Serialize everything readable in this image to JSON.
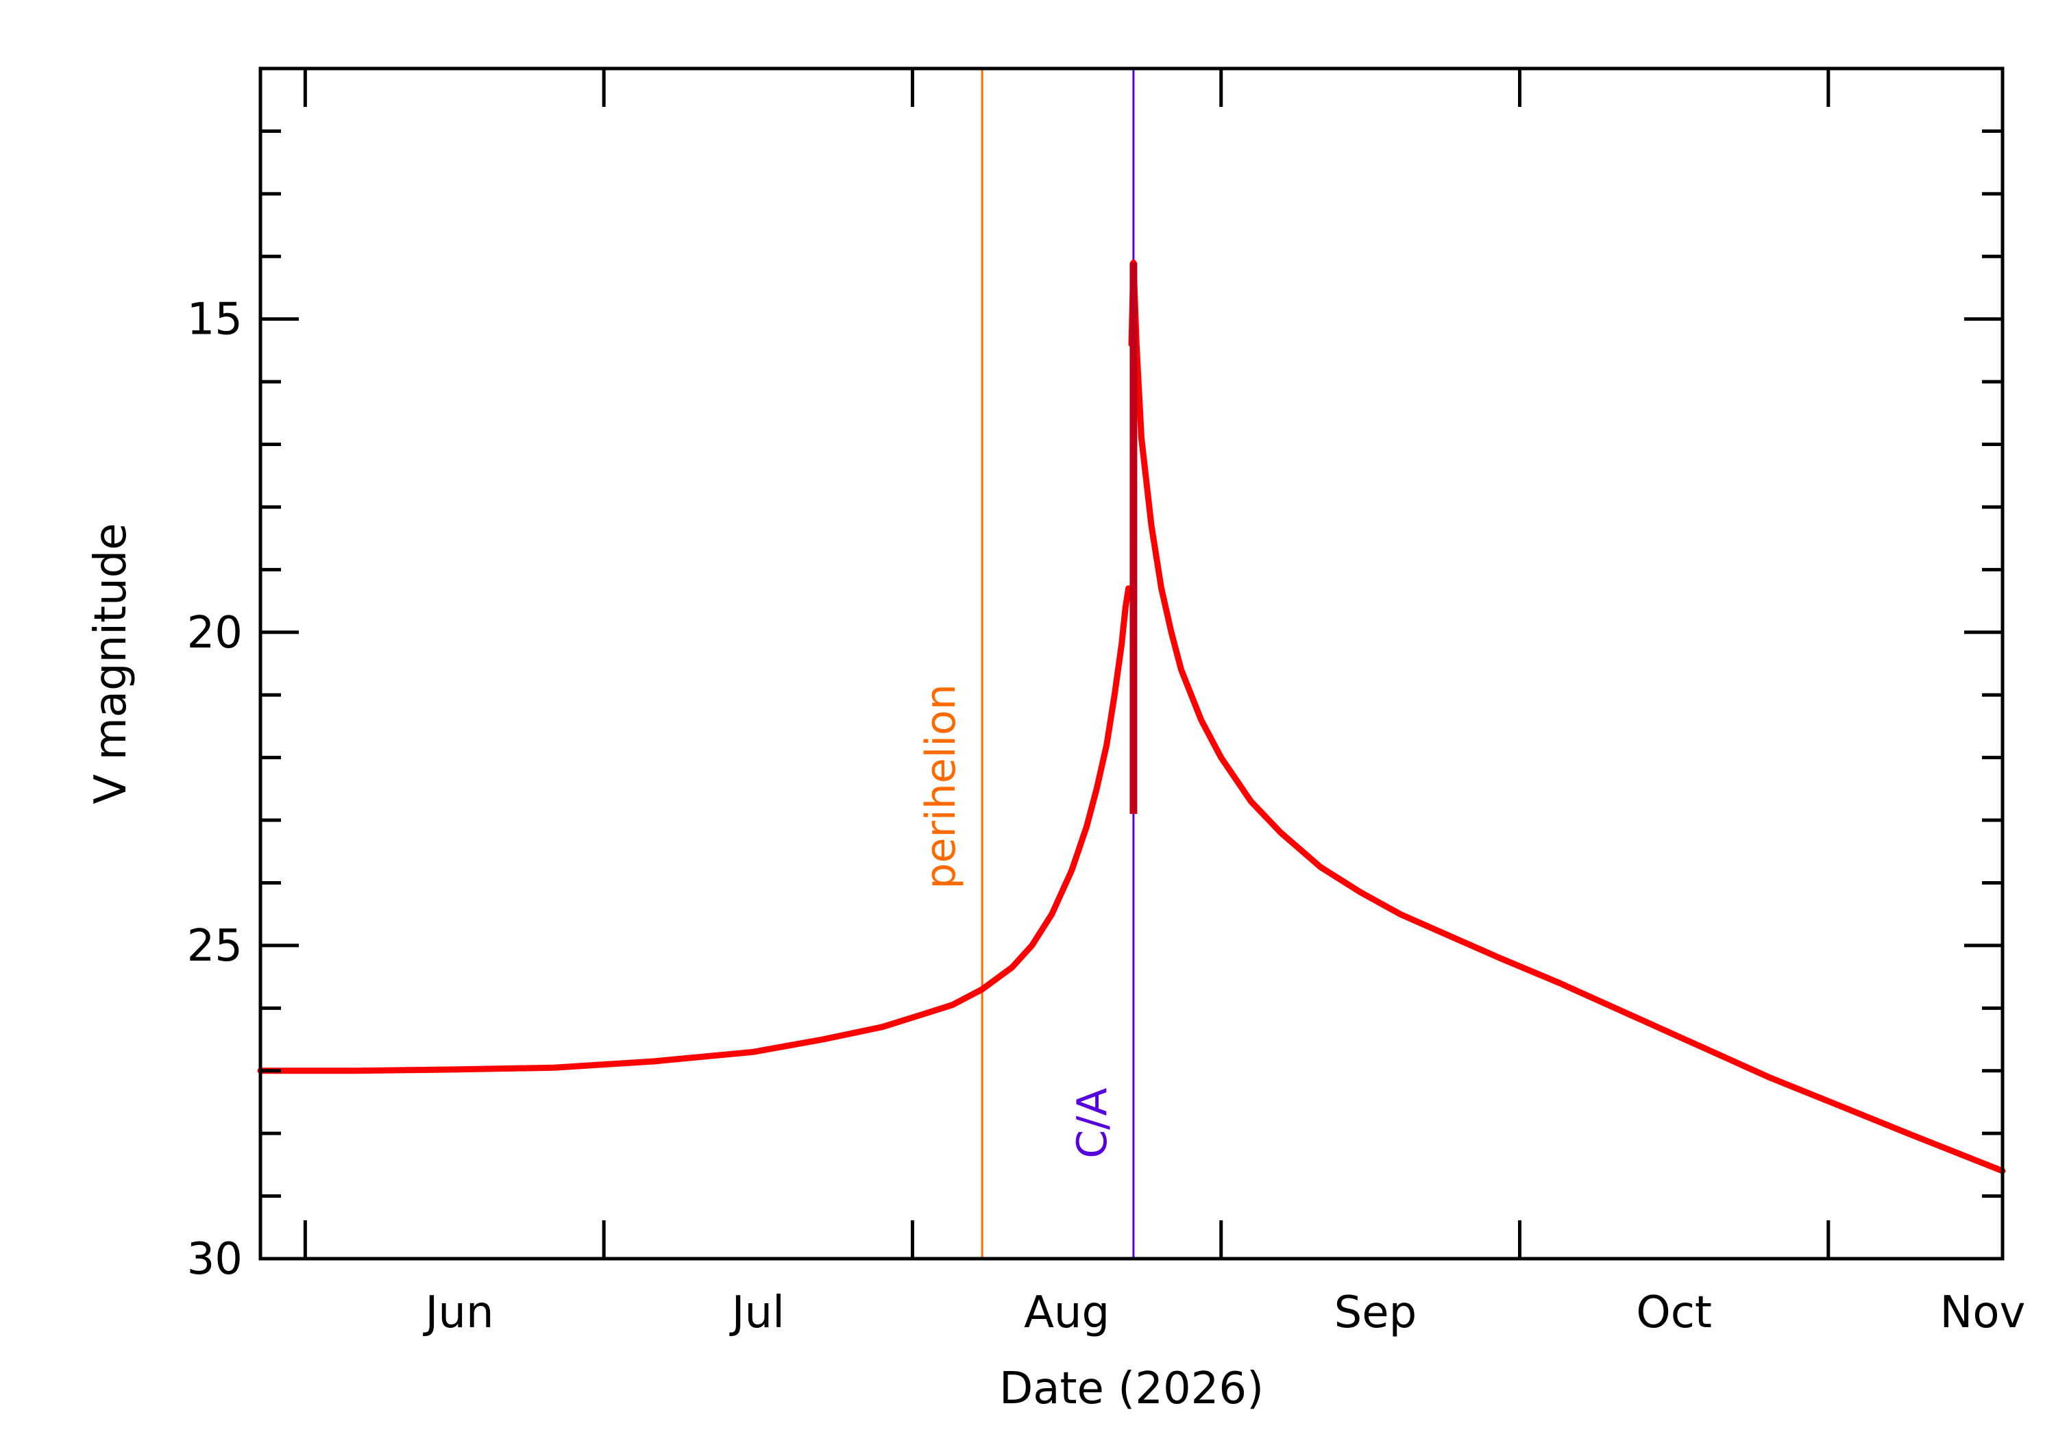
{
  "chart_data": {
    "type": "line",
    "title": "",
    "xlabel": "Date (2026)",
    "ylabel": "V magnitude",
    "x_ticks": [
      {
        "label": "Jun",
        "x": 1
      },
      {
        "label": "Jul",
        "x": 31
      },
      {
        "label": "Aug",
        "x": 62
      },
      {
        "label": "Sep",
        "x": 93
      },
      {
        "label": "Oct",
        "x": 123
      },
      {
        "label": "Nov",
        "x": 154
      }
    ],
    "xlim": [
      -4.5,
      170.5
    ],
    "ylim": [
      30,
      11
    ],
    "y_inverted": true,
    "y_ticks": [
      15,
      20,
      25,
      30
    ],
    "y_minor_step": 1,
    "x_minor_days": [
      16,
      46,
      77,
      108,
      138,
      169
    ],
    "grid": false,
    "legend": "none",
    "markers": [
      {
        "label": "perihelion",
        "x": 68.0,
        "color": "#ff6a00"
      },
      {
        "label": "C/A",
        "x": 83.2,
        "color": "#5500dd"
      }
    ],
    "series": [
      {
        "color": "#ff0000",
        "x": [
          -4.5,
          5,
          15,
          25,
          35,
          45,
          52,
          58,
          62,
          65,
          68,
          71,
          73,
          75,
          77,
          78.5,
          79.5,
          80.5,
          81.3,
          82.0,
          82.4,
          82.7
        ],
        "y": [
          27.0,
          27.0,
          26.98,
          26.95,
          26.85,
          26.7,
          26.5,
          26.3,
          26.1,
          25.95,
          25.7,
          25.35,
          25.0,
          24.5,
          23.8,
          23.1,
          22.5,
          21.8,
          21.0,
          20.2,
          19.6,
          19.3
        ]
      },
      {
        "color": "#ff0000",
        "x": [
          83.0,
          83.2,
          83.5,
          84,
          85,
          86,
          87,
          88,
          90,
          92,
          95,
          98,
          102,
          106,
          110,
          115,
          120,
          126,
          133,
          140,
          147,
          154,
          161,
          170.5
        ],
        "y": [
          15.4,
          14.1,
          15.4,
          16.9,
          18.3,
          19.3,
          20.0,
          20.6,
          21.4,
          22.0,
          22.7,
          23.2,
          23.75,
          24.15,
          24.5,
          24.85,
          25.2,
          25.6,
          26.1,
          26.6,
          27.1,
          27.55,
          28.0,
          28.6
        ]
      }
    ],
    "spike": {
      "x": 83.2,
      "y_top": 14.1,
      "y_bottom": 22.9,
      "color": "#c0001a"
    }
  }
}
